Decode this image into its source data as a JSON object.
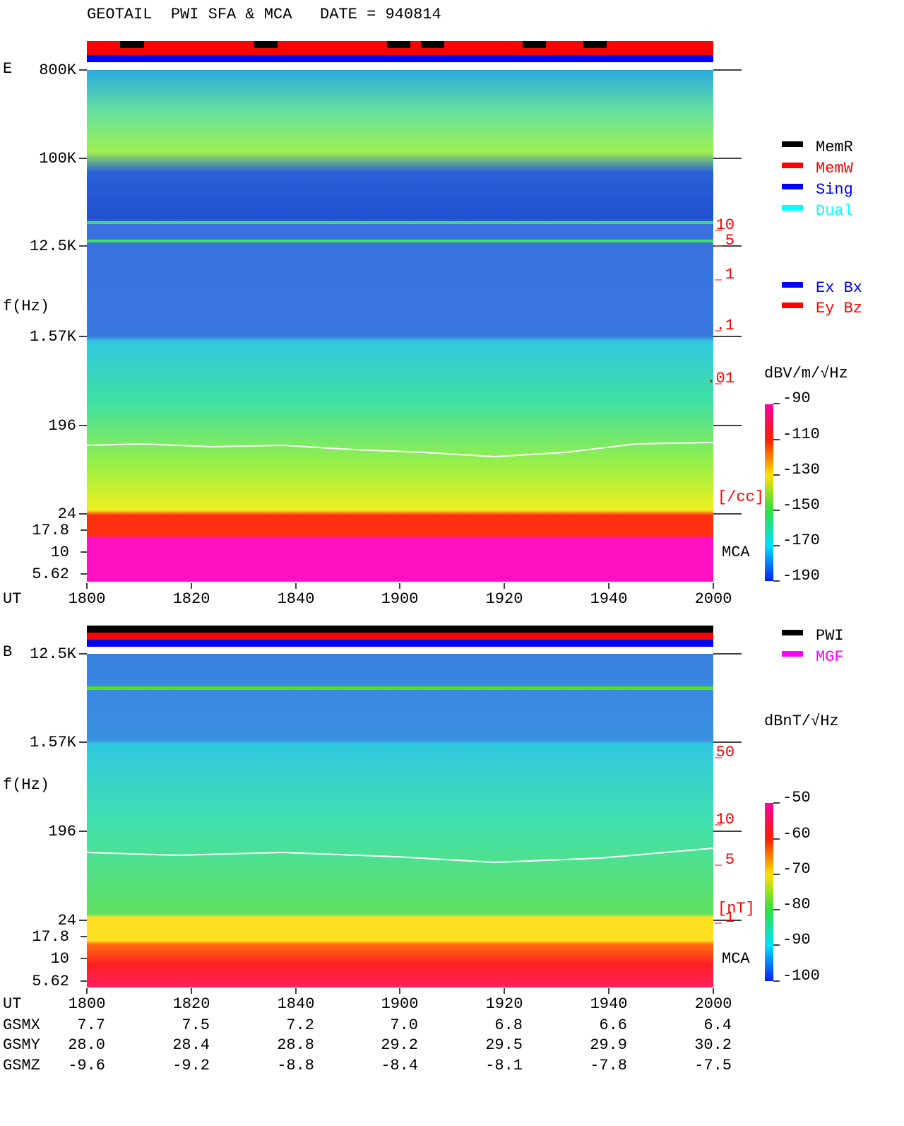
{
  "title": "GEOTAIL  PWI SFA & MCA   DATE = 940814",
  "panels": [
    {
      "label": "E",
      "y_axis_label": "f(Hz)",
      "y_ticks": [
        "800K",
        "100K",
        "12.5K",
        "1.57K",
        "196",
        "24"
      ],
      "mca_ticks": [
        "17.8",
        "10",
        "5.62"
      ],
      "right_labels": [
        "10",
        "5",
        "1",
        ".1",
        ".01"
      ],
      "right_unit": "[/cc]",
      "mca_label": "MCA",
      "x_axis_label": "UT",
      "x_ticks": [
        "1800",
        "1820",
        "1840",
        "1900",
        "1920",
        "1940",
        "2000"
      ],
      "legend": [
        {
          "name": "MemR",
          "color": "#000000"
        },
        {
          "name": "MemW",
          "color": "#ff0000"
        },
        {
          "name": "Sing",
          "color": "#0000ff"
        },
        {
          "name": "Dual",
          "color": "#00ffff"
        },
        {
          "name": "Ex Bx",
          "color": "#0000ff"
        },
        {
          "name": "Ey Bz",
          "color": "#ff0000"
        }
      ],
      "colorbar": {
        "unit": "dBV/m/√Hz",
        "ticks": [
          "-90",
          "-110",
          "-130",
          "-150",
          "-170",
          "-190"
        ]
      }
    },
    {
      "label": "B",
      "y_axis_label": "f(Hz)",
      "y_ticks": [
        "12.5K",
        "1.57K",
        "196",
        "24"
      ],
      "mca_ticks": [
        "17.8",
        "10",
        "5.62"
      ],
      "right_labels": [
        "50",
        "10",
        "5",
        "1"
      ],
      "right_unit": "[nT]",
      "mca_label": "MCA",
      "x_axis_label": "UT",
      "x_ticks": [
        "1800",
        "1820",
        "1840",
        "1900",
        "1920",
        "1940",
        "2000"
      ],
      "legend": [
        {
          "name": "PWI",
          "color": "#000000"
        },
        {
          "name": "MGF",
          "color": "#ff00ff"
        }
      ],
      "colorbar": {
        "unit": "dBnT/√Hz",
        "ticks": [
          "-50",
          "-60",
          "-70",
          "-80",
          "-90",
          "-100"
        ]
      }
    }
  ],
  "orbit": [
    {
      "name": "GSMX",
      "values": [
        "7.7",
        "7.5",
        "7.2",
        "7.0",
        "6.8",
        "6.6",
        "6.4"
      ]
    },
    {
      "name": "GSMY",
      "values": [
        "28.0",
        "28.4",
        "28.8",
        "29.2",
        "29.5",
        "29.9",
        "30.2"
      ]
    },
    {
      "name": "GSMZ",
      "values": [
        "-9.6",
        "-9.2",
        "-8.8",
        "-8.4",
        "-8.1",
        "-7.8",
        "-7.5"
      ]
    }
  ]
}
